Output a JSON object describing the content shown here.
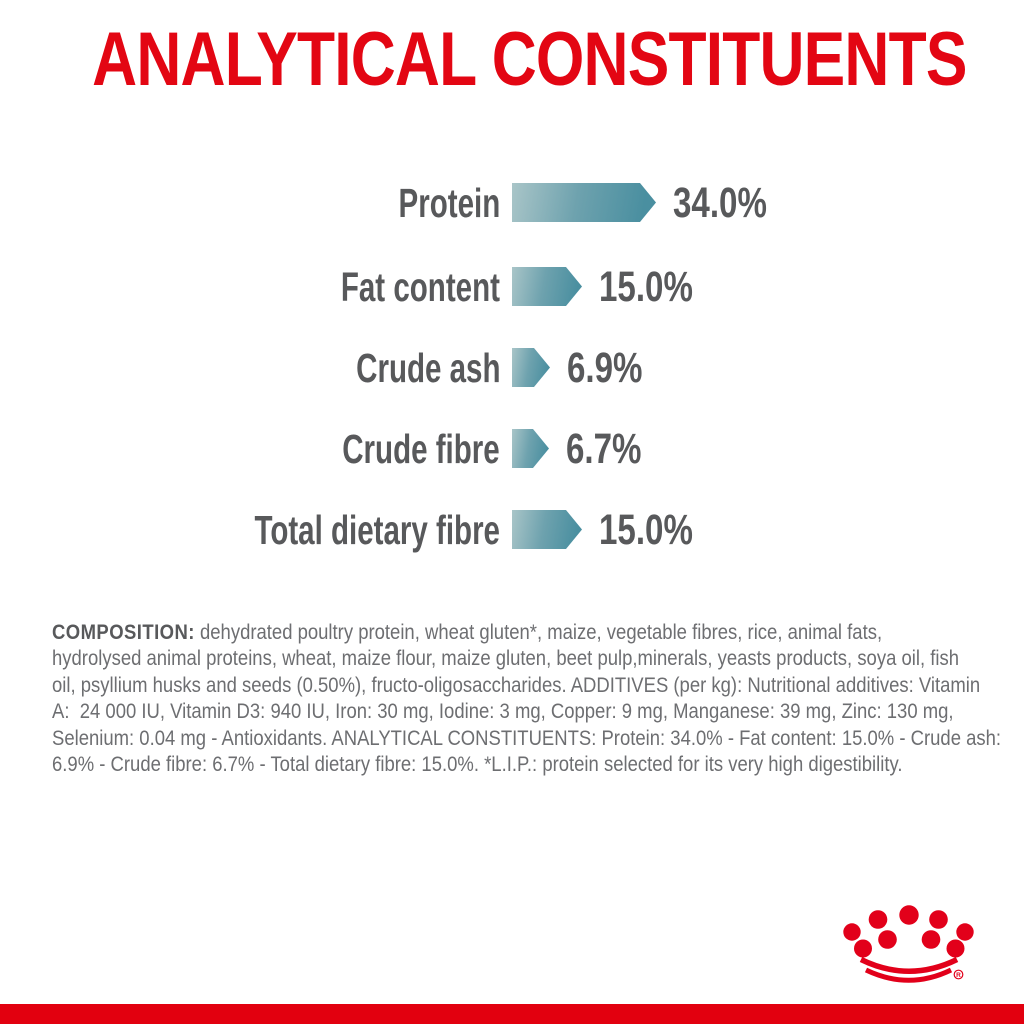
{
  "title": {
    "text": "ANALYTICAL CONSTITUENTS",
    "color": "#e30613"
  },
  "chart_data": {
    "type": "bar",
    "orientation": "horizontal",
    "title": "ANALYTICAL CONSTITUENTS",
    "categories": [
      "Protein",
      "Fat content",
      "Crude ash",
      "Crude fibre",
      "Total dietary fibre"
    ],
    "values": [
      34.0,
      15.0,
      6.9,
      6.7,
      15.0
    ],
    "value_labels": [
      "34.0%",
      "15.0%",
      "6.9%",
      "6.7%",
      "15.0%"
    ],
    "unit": "%",
    "xlim": [
      0,
      34
    ],
    "grid": false,
    "legend": false,
    "bar_color_light": "#a9c5c8",
    "bar_color_dark": "#4a8fa0",
    "label_color": "#58595b"
  },
  "composition": {
    "label": "COMPOSITION:",
    "lines": [
      "dehydrated poultry protein, wheat gluten*, maize, vegetable fibres, rice, animal fats,",
      "hydrolysed animal proteins, wheat, maize flour, maize gluten, beet pulp,minerals, yeasts products, soya oil, fish",
      "oil, psyllium husks and seeds (0.50%), fructo-oligosaccharides. ADDITIVES (per kg): Nutritional additives: Vitamin",
      "A:  24 000 IU, Vitamin D3: 940 IU, Iron: 30 mg, Iodine: 3 mg, Copper: 9 mg, Manganese: 39 mg, Zinc: 130 mg,",
      "Selenium: 0.04 mg - Antioxidants. ANALYTICAL CONSTITUENTS: Protein: 34.0% - Fat content: 15.0% - Crude ash:",
      "6.9% - Crude fibre: 6.7% - Total dietary fibre: 15.0%. *L.I.P.: protein selected for its very high digestibility."
    ],
    "text_color": "#6d6e71"
  },
  "logo": {
    "name": "royal-canin-crown",
    "color": "#e2001a",
    "registered_mark": "R"
  },
  "footer": {
    "band_color": "#e2000f"
  }
}
